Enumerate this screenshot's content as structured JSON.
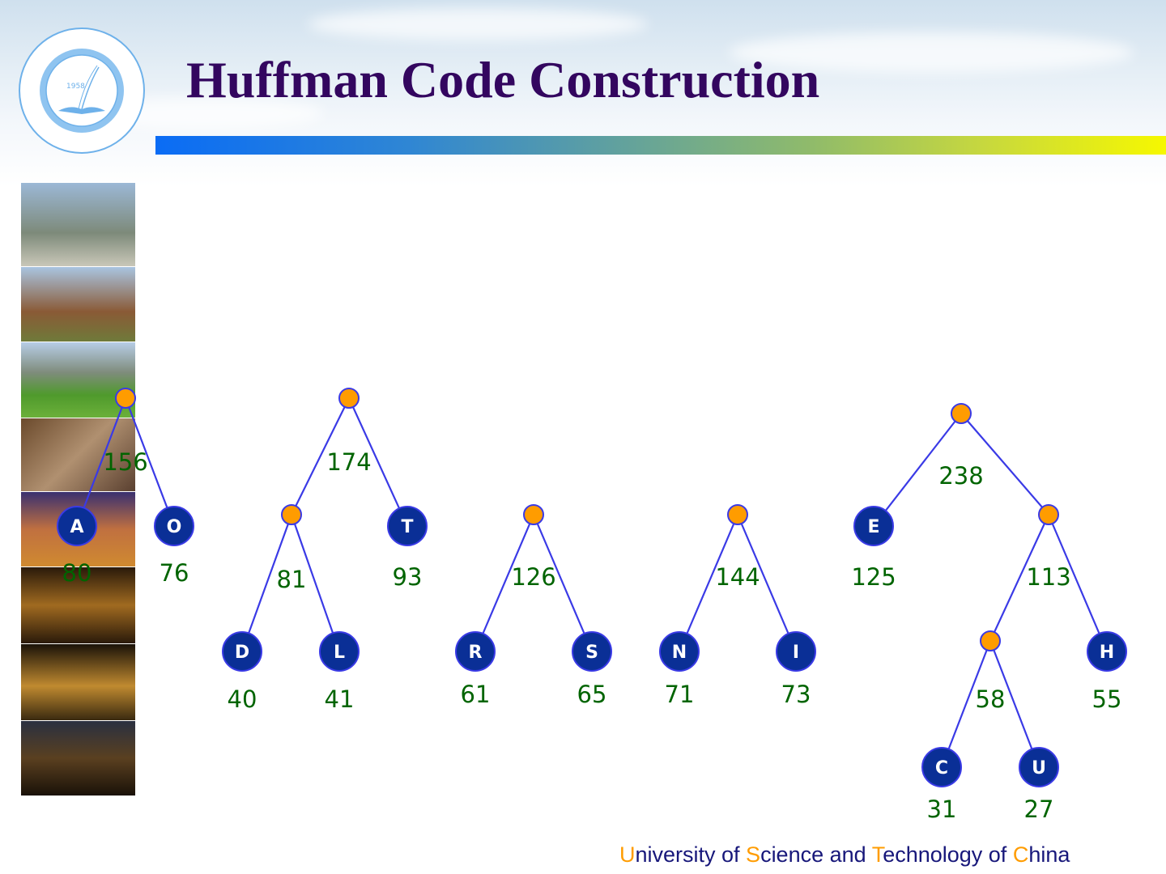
{
  "slide": {
    "title": "Huffman Code Construction",
    "logo": {
      "text": "University of Science and Technology of China",
      "year": "1958"
    },
    "footer": [
      {
        "hl": "U",
        "rest": "niversity of "
      },
      {
        "hl": "S",
        "rest": "cience and "
      },
      {
        "hl": "T",
        "rest": "echnology of "
      },
      {
        "hl": "C",
        "rest": "hina"
      }
    ]
  },
  "colors": {
    "title": "#33065f",
    "edge": "#3a3ae6",
    "leaf_fill": "#0a2f96",
    "internal_fill": "#ff9c00",
    "weight_text": "#006400",
    "footer_text": "#17177a",
    "footer_highlight": "#ff9c00"
  },
  "diagram": {
    "nodes": [
      {
        "id": "n156",
        "type": "internal",
        "weight": "156"
      },
      {
        "id": "A",
        "type": "leaf",
        "letter": "A",
        "weight": "80"
      },
      {
        "id": "O",
        "type": "leaf",
        "letter": "O",
        "weight": "76"
      },
      {
        "id": "n174",
        "type": "internal",
        "weight": "174"
      },
      {
        "id": "n81",
        "type": "internal",
        "weight": "81"
      },
      {
        "id": "T",
        "type": "leaf",
        "letter": "T",
        "weight": "93"
      },
      {
        "id": "D",
        "type": "leaf",
        "letter": "D",
        "weight": "40"
      },
      {
        "id": "L",
        "type": "leaf",
        "letter": "L",
        "weight": "41"
      },
      {
        "id": "n126",
        "type": "internal",
        "weight": "126"
      },
      {
        "id": "R",
        "type": "leaf",
        "letter": "R",
        "weight": "61"
      },
      {
        "id": "S",
        "type": "leaf",
        "letter": "S",
        "weight": "65"
      },
      {
        "id": "n144",
        "type": "internal",
        "weight": "144"
      },
      {
        "id": "N",
        "type": "leaf",
        "letter": "N",
        "weight": "71"
      },
      {
        "id": "I",
        "type": "leaf",
        "letter": "I",
        "weight": "73"
      },
      {
        "id": "n238",
        "type": "internal",
        "weight": "238"
      },
      {
        "id": "E",
        "type": "leaf",
        "letter": "E",
        "weight": "125"
      },
      {
        "id": "n113",
        "type": "internal",
        "weight": "113"
      },
      {
        "id": "n58",
        "type": "internal",
        "weight": "58"
      },
      {
        "id": "H",
        "type": "leaf",
        "letter": "H",
        "weight": "55"
      },
      {
        "id": "C",
        "type": "leaf",
        "letter": "C",
        "weight": "31"
      },
      {
        "id": "U",
        "type": "leaf",
        "letter": "U",
        "weight": "27"
      }
    ],
    "edges": [
      [
        "n156",
        "A"
      ],
      [
        "n156",
        "O"
      ],
      [
        "n174",
        "n81"
      ],
      [
        "n174",
        "T"
      ],
      [
        "n81",
        "D"
      ],
      [
        "n81",
        "L"
      ],
      [
        "n126",
        "R"
      ],
      [
        "n126",
        "S"
      ],
      [
        "n144",
        "N"
      ],
      [
        "n144",
        "I"
      ],
      [
        "n238",
        "E"
      ],
      [
        "n238",
        "n113"
      ],
      [
        "n113",
        "n58"
      ],
      [
        "n113",
        "H"
      ],
      [
        "n58",
        "C"
      ],
      [
        "n58",
        "U"
      ]
    ]
  }
}
